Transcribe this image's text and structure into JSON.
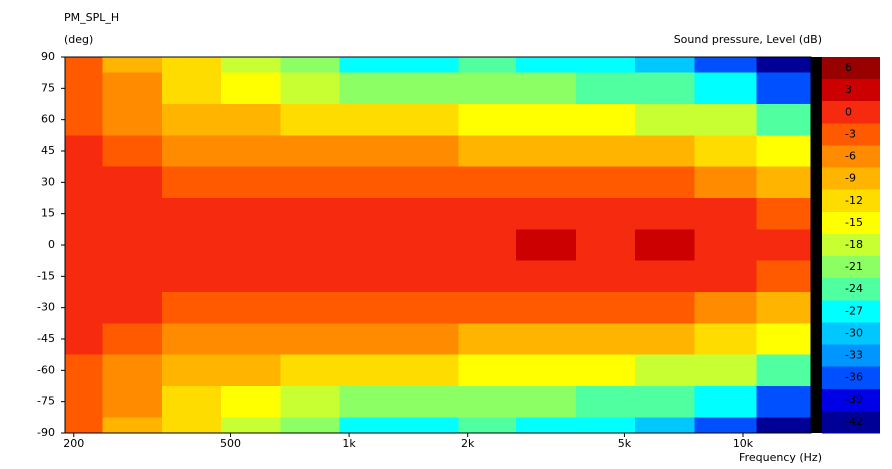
{
  "chart_data": {
    "type": "contour",
    "title": "PM_SPL_H",
    "y_label": "(deg)",
    "colorbar_label": "Sound pressure, Level  (dB)",
    "x_label": "Frequency  (Hz)",
    "log_x": true,
    "xlim": [
      190,
      14880
    ],
    "xticks": [
      200,
      500,
      {
        "value": 1000,
        "label": "1k"
      },
      {
        "value": 2000,
        "label": "2k"
      },
      {
        "value": 5000,
        "label": "5k"
      },
      {
        "value": 10000,
        "label": "10k"
      }
    ],
    "ylim": [
      -90,
      90
    ],
    "yticks": [
      90,
      75,
      60,
      45,
      30,
      15,
      0,
      -15,
      -30,
      -45,
      -60,
      -75,
      -90
    ],
    "x": [
      200,
      280,
      400,
      560,
      800,
      1120,
      1600,
      2240,
      3150,
      4500,
      6300,
      9000,
      13000
    ],
    "y": [
      90,
      75,
      60,
      45,
      30,
      15,
      0,
      -15,
      -30,
      -45,
      -60,
      -75,
      -90
    ],
    "z": [
      [
        -3.5,
        -8,
        -13,
        -18,
        -22,
        -26,
        -26,
        -25,
        -26,
        -27,
        -30,
        -36,
        -42
      ],
      [
        -3,
        -7,
        -11,
        -15,
        -18,
        -21,
        -21,
        -22,
        -22,
        -23,
        -25,
        -28,
        -35
      ],
      [
        -2,
        -5,
        -8,
        -10,
        -12,
        -13,
        -13,
        -14,
        -15,
        -15,
        -17,
        -19,
        -24
      ],
      [
        -0.5,
        -3,
        -5,
        -6,
        -7,
        -7,
        -7,
        -8,
        -9,
        -9,
        -10,
        -12,
        -15
      ],
      [
        0,
        -1,
        -2,
        -3,
        -3,
        -3,
        -3,
        -3.5,
        -4,
        -4,
        -4,
        -6,
        -8
      ],
      [
        0,
        0,
        0,
        -0.5,
        -0.5,
        -0.5,
        -0.5,
        -0.5,
        0,
        0,
        1,
        -1,
        -2
      ],
      [
        0,
        0,
        0,
        0,
        0,
        0,
        0,
        0,
        2,
        1,
        2,
        1,
        0
      ],
      [
        0,
        0,
        0,
        -0.5,
        -0.5,
        -0.5,
        -0.5,
        -0.5,
        0,
        0,
        1,
        -1,
        -2
      ],
      [
        0,
        -1,
        -2,
        -3,
        -3,
        -3,
        -3,
        -3.5,
        -4,
        -4,
        -4,
        -6,
        -8
      ],
      [
        -0.5,
        -3,
        -5,
        -6,
        -7,
        -7,
        -7,
        -8,
        -9,
        -9,
        -10,
        -12,
        -15
      ],
      [
        -2,
        -5,
        -8,
        -10,
        -12,
        -13,
        -13,
        -14,
        -15,
        -15,
        -17,
        -19,
        -24
      ],
      [
        -3,
        -7,
        -11,
        -15,
        -18,
        -21,
        -21,
        -22,
        -22,
        -23,
        -25,
        -28,
        -35
      ],
      [
        -3.5,
        -8,
        -13,
        -18,
        -22,
        -26,
        -26,
        -25,
        -26,
        -27,
        -30,
        -36,
        -42
      ]
    ],
    "levels": [
      6,
      3,
      0,
      -3,
      -6,
      -9,
      -12,
      -15,
      -18,
      -21,
      -24,
      -27,
      -30,
      -33,
      -36,
      -39,
      -42
    ],
    "colors": [
      "#990000",
      "#cc0000",
      "#f52a0f",
      "#ff5a00",
      "#ff8c00",
      "#ffb400",
      "#ffdc00",
      "#ffff00",
      "#c8ff32",
      "#8cff64",
      "#50ffa0",
      "#00ffff",
      "#00c8ff",
      "#0096ff",
      "#0050ff",
      "#0000e6",
      "#000096"
    ]
  }
}
